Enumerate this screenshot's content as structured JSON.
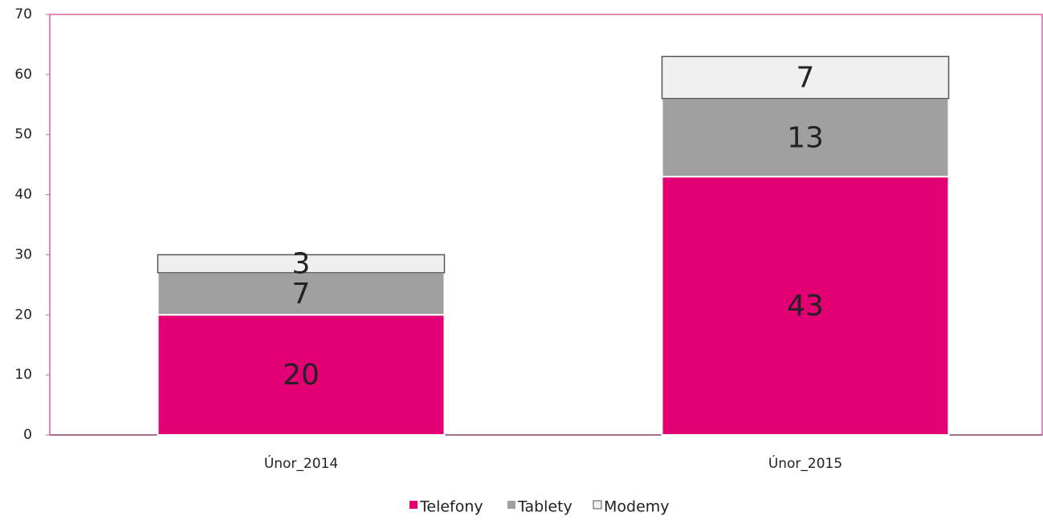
{
  "chart_data": {
    "type": "stacked_bar",
    "categories": [
      "Únor_2014",
      "Únor_2015"
    ],
    "series": [
      {
        "name": "Telefony",
        "color": "#e20074",
        "values": [
          20,
          43
        ]
      },
      {
        "name": "Tablety",
        "color": "#a0a0a0",
        "values": [
          7,
          13
        ]
      },
      {
        "name": "Modemy",
        "color": "#f0f0f0",
        "values": [
          3,
          7
        ]
      }
    ],
    "ylim": [
      0,
      70
    ],
    "yticks": [
      0,
      10,
      20,
      30,
      40,
      50,
      60,
      70
    ],
    "legend": "bottom"
  }
}
